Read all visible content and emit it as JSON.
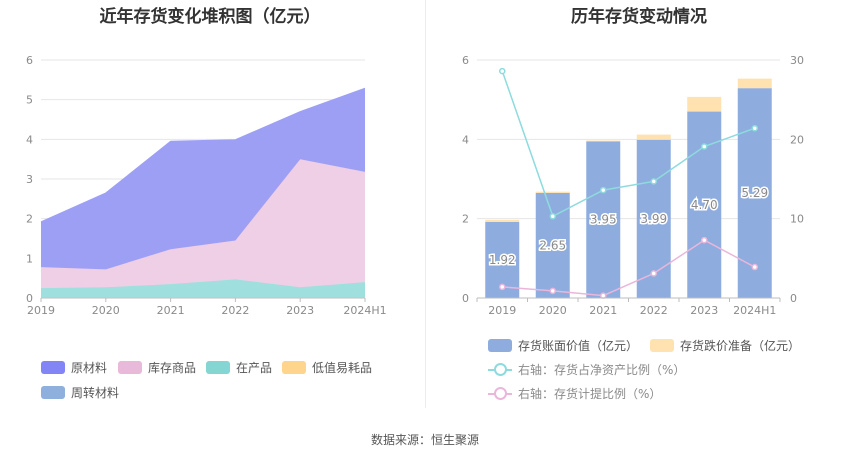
{
  "source": "数据来源：恒生聚源",
  "chart_data": [
    {
      "type": "area",
      "title": "近年存货变化堆积图（亿元）",
      "categories": [
        "2019",
        "2020",
        "2021",
        "2022",
        "2023",
        "2024H1"
      ],
      "ylim": [
        0,
        6
      ],
      "yticks": [
        "0",
        "1",
        "2",
        "3",
        "4",
        "5",
        "6"
      ],
      "stacked": true,
      "series": [
        {
          "name": "低值易耗品",
          "color": "#ffd89a",
          "values": [
            0.02,
            0.02,
            0.02,
            0.02,
            0.02,
            0.02
          ]
        },
        {
          "name": "在产品",
          "color": "#9fe0de",
          "values": [
            0.23,
            0.25,
            0.33,
            0.45,
            0.25,
            0.38
          ]
        },
        {
          "name": "库存商品",
          "color": "#efcfe6",
          "values": [
            0.53,
            0.45,
            0.88,
            0.98,
            3.23,
            2.78
          ]
        },
        {
          "name": "原材料",
          "color": "#9d9ff5",
          "values": [
            1.14,
            1.93,
            2.72,
            2.54,
            1.2,
            2.11
          ]
        },
        {
          "name": "周转材料",
          "color": "#8fb0dc",
          "values": [
            0,
            0,
            0,
            0,
            0,
            0
          ]
        }
      ],
      "legend": [
        {
          "name": "原材料",
          "color": "#8385f6"
        },
        {
          "name": "库存商品",
          "color": "#e9b9d9"
        },
        {
          "name": "在产品",
          "color": "#85d5d2"
        },
        {
          "name": "低值易耗品",
          "color": "#ffd48c"
        },
        {
          "name": "周转材料",
          "color": "#8fb0dc"
        }
      ],
      "legend_position": "bottom",
      "grid": true
    },
    {
      "type": "bar",
      "title": "历年存货变动情况",
      "categories": [
        "2019",
        "2020",
        "2021",
        "2022",
        "2023",
        "2024H1"
      ],
      "ylim": [
        0,
        6
      ],
      "yticks": [
        "0",
        "2",
        "4",
        "6"
      ],
      "y2lim": [
        0,
        30
      ],
      "y2ticks": [
        "0",
        "10",
        "20",
        "30"
      ],
      "bar_series": [
        {
          "name": "存货账面价值（亿元）",
          "color": "#8eadde",
          "values": [
            1.92,
            2.65,
            3.95,
            3.99,
            4.7,
            5.29
          ],
          "labels": [
            "1.92",
            "2.65",
            "3.95",
            "3.99",
            "4.70",
            "5.29"
          ]
        },
        {
          "name": "存货跌价准备（亿元）",
          "color": "#ffe2b0",
          "values": [
            0.05,
            0.03,
            0.02,
            0.13,
            0.37,
            0.24
          ]
        }
      ],
      "line_series": [
        {
          "name": "右轴：存货占净资产比例（%）",
          "color": "#8ddbde",
          "axis": "right",
          "values": [
            28.6,
            10.3,
            13.6,
            14.7,
            19.1,
            21.4
          ]
        },
        {
          "name": "右轴：存货计提比例（%）",
          "color": "#eab6da",
          "axis": "right",
          "values": [
            1.4,
            0.9,
            0.3,
            3.1,
            7.3,
            3.9
          ]
        }
      ],
      "legend_position": "bottom",
      "grid": true
    }
  ]
}
